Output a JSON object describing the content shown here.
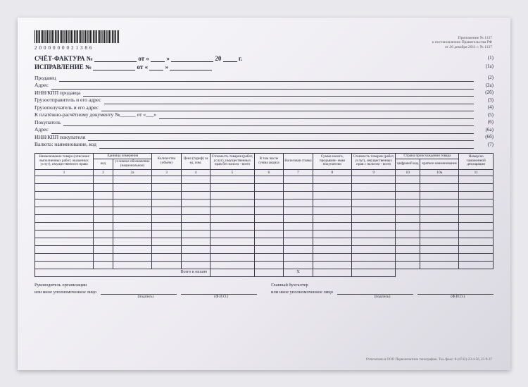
{
  "barcode_number": "2000000021386",
  "appendix": {
    "l1": "Приложение № 1137",
    "l2": "к постановлению Правительства РФ",
    "l3": "от 26 декабря 2011 г. № 1137"
  },
  "header": {
    "title1_a": "СЧЁТ-ФАКТУРА №",
    "title1_b": "от «",
    "title1_c": "»",
    "title1_d": "20",
    "title1_e": "г.",
    "title2_a": "ИСПРАВЛЕНИЕ №",
    "title2_b": "от «",
    "title2_c": "»"
  },
  "fields": [
    {
      "label": "Продавец",
      "paren": "(2)"
    },
    {
      "label": "Адрес",
      "paren": "(2а)"
    },
    {
      "label": "ИНН/КПП продавца",
      "paren": "(2б)"
    },
    {
      "label": "Грузоотправитель и его адрес",
      "paren": "(3)"
    },
    {
      "label": "Грузополучатель и его адрес",
      "paren": "(4)"
    },
    {
      "label": "К платёжно-расчётному документу №______ от «___»",
      "paren": "(5)"
    },
    {
      "label": "Покупатель",
      "paren": "(6)"
    },
    {
      "label": "Адрес",
      "paren": "(6а)"
    },
    {
      "label": "ИНН/КПП покупателя",
      "paren": "(6б)"
    },
    {
      "label": "Валюта: наименование, код",
      "paren": "(7)"
    }
  ],
  "header_parens": {
    "r1": "(1)",
    "r1a": "(1а)"
  },
  "columns": {
    "c1": "Наименование товара (описание выполненных работ, оказанных услуг), имущественного права",
    "c2g": "Единица измерения",
    "c2a": "код",
    "c2b": "условное обозначение (национальное)",
    "c3": "Количество (объём)",
    "c4": "Цена (тариф) за ед. изм.",
    "c5": "Стоимость товаров (работ, услуг), имущественных прав без налога - всего",
    "c6": "В том числе сумма акциза",
    "c7": "Налоговая ставка",
    "c8": "Сумма налога, предъявля- емая покупателю",
    "c9": "Стоимость товаров (работ, услуг), имущественных прав с налогом - всего",
    "c10g": "Страна происхождения товара",
    "c10a": "цифровой код",
    "c10b": "краткое наименование",
    "c11": "Номер/но таможенной декларации"
  },
  "numrow": [
    "1",
    "2",
    "2а",
    "3",
    "4",
    "5",
    "6",
    "7",
    "8",
    "9",
    "10",
    "10а",
    "11"
  ],
  "total_label": "Всего к оплате",
  "total_x": "X",
  "sign": {
    "left_title": "Руководитель организации",
    "left_sub": "или иное уполномоченное лицо",
    "right_title": "Главный бухгалтер",
    "right_sub": "или иное уполномоченное лицо",
    "podpis": "(подпись)",
    "fio": "(Ф.И.О.)"
  },
  "footnote": "Отпечатано в ООО Первопечатник типография. Тел./факс: 8-(4742)-23-4-56, 23-9-37",
  "style": {
    "col_widths_pct": [
      12,
      4,
      8,
      6,
      6,
      9,
      6,
      6,
      8,
      9,
      5,
      8,
      7
    ],
    "data_rows": 12,
    "ink": "#2a2a3a"
  }
}
